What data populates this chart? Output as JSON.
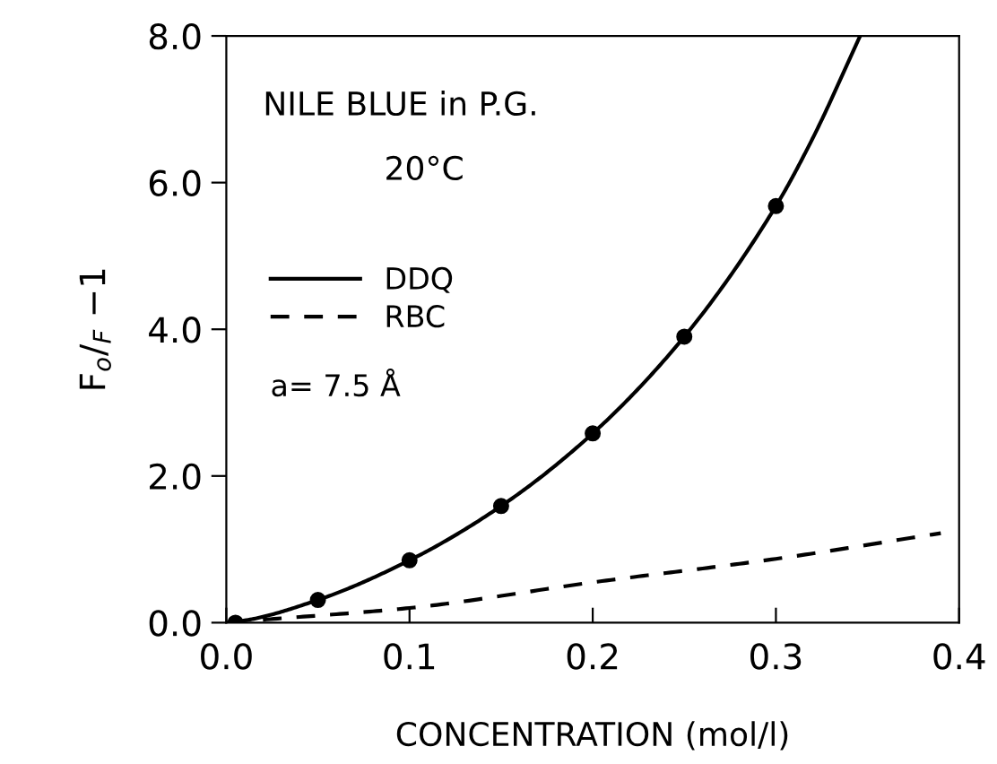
{
  "chart_data": {
    "type": "line",
    "xlabel": "CONCENTRATION (mol/l)",
    "ylabel": "F$_{o}$/$_{F}$ −1",
    "annotations": [
      "NILE BLUE in P.G.",
      "20°C",
      "a= 7.5 Å"
    ],
    "series": [
      {
        "name": "DDQ",
        "color": "#000000",
        "line_style": "solid",
        "x": [
          0.0,
          0.01,
          0.05,
          0.1,
          0.15,
          0.2,
          0.25,
          0.3,
          0.32,
          0.346
        ],
        "values": [
          0.0,
          0.03,
          0.31,
          0.85,
          1.59,
          2.58,
          3.9,
          5.68,
          6.6,
          8.0
        ]
      },
      {
        "name": "RBC",
        "color": "#000000",
        "line_style": "dashed",
        "x": [
          0.02,
          0.1,
          0.2,
          0.3,
          0.39
        ],
        "values": [
          0.04,
          0.2,
          0.55,
          0.87,
          1.22
        ]
      },
      {
        "color": "#000000",
        "type": "scatter",
        "marker": "circle",
        "x": [
          0.005,
          0.05,
          0.1,
          0.15,
          0.2,
          0.25,
          0.3
        ],
        "values": [
          0.0,
          0.31,
          0.85,
          1.59,
          2.58,
          3.9,
          5.68
        ]
      }
    ],
    "xlim": [
      0,
      0.4
    ],
    "ylim": [
      0,
      8
    ],
    "xticks": [
      {
        "value": 0,
        "label": "0.0"
      },
      0.1,
      0.2,
      0.3,
      0.4
    ],
    "yticks": [
      {
        "value": 0,
        "label": "0.0"
      },
      {
        "value": 2,
        "label": "2.0"
      },
      {
        "value": 4,
        "label": "4.0"
      },
      {
        "value": 6,
        "label": "6.0"
      },
      {
        "value": 8,
        "label": "8.0"
      }
    ],
    "grid": false,
    "legend": "left"
  }
}
